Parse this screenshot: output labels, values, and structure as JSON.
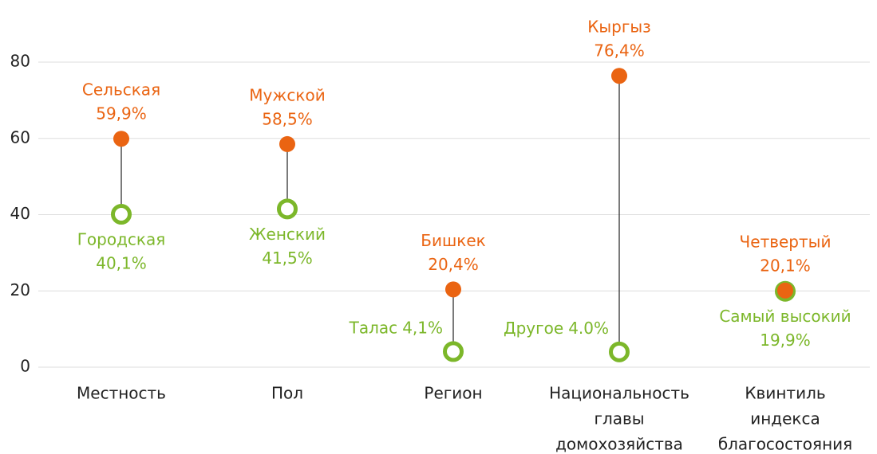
{
  "chart_data": {
    "type": "dumbbell",
    "categories": [
      [
        "Местность"
      ],
      [
        "Пол"
      ],
      [
        "Регион"
      ],
      [
        "Национальность",
        "главы",
        "домохозяйства"
      ],
      [
        "Квинтиль",
        "индекса",
        "благосостояния"
      ]
    ],
    "series": [
      {
        "color": "#ea6412",
        "values": [
          59.9,
          58.5,
          20.4,
          76.4,
          20.1
        ],
        "value_labels": [
          "59,9%",
          "58,5%",
          "20,4%",
          "76,4%",
          "20,1%"
        ],
        "point_labels": [
          "Сельская",
          "Мужской",
          "Бишкек",
          "Кыргыз",
          "Четвертый"
        ]
      },
      {
        "color": "#7cb72a",
        "values": [
          40.1,
          41.5,
          4.1,
          4.0,
          19.9
        ],
        "value_labels": [
          "40,1%",
          "41,5%",
          "4,1%",
          "4.0%",
          "19,9%"
        ],
        "point_labels": [
          "Городская",
          "Женский",
          "Талас",
          "Другое",
          "Самый высокий"
        ]
      }
    ],
    "ylim": [
      0,
      80
    ],
    "yticks": [
      0,
      20,
      40,
      60,
      80
    ],
    "grid": true
  }
}
